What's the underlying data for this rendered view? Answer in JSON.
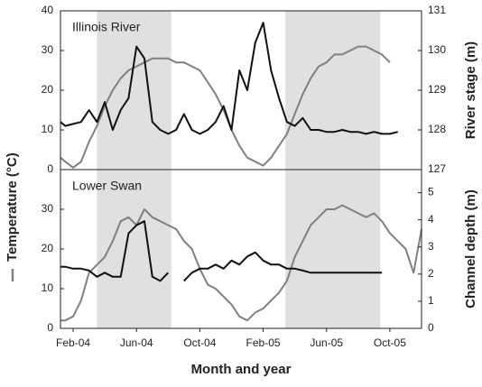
{
  "chart_data": [
    {
      "type": "line",
      "label": "Illinois River",
      "ylabel": "Temperature (°C)",
      "y2label": "River stage (m)",
      "xlim": [
        0.2,
        23.0
      ],
      "ylim": [
        0,
        40
      ],
      "yticks": [
        0,
        10,
        20,
        30,
        40
      ],
      "y2lim": [
        127,
        131
      ],
      "y2ticks": [
        127,
        128,
        129,
        130,
        131
      ],
      "shaded_x": [
        [
          2.5,
          7.2
        ],
        [
          14.4,
          20.4
        ]
      ],
      "shade_color": "#e0e0e0",
      "x": [
        0.2,
        0.5,
        1,
        1.5,
        2,
        2.5,
        3,
        3.5,
        4,
        4.5,
        5,
        5.5,
        6,
        6.5,
        7,
        7.5,
        8,
        8.5,
        9,
        9.5,
        10,
        10.5,
        11,
        11.5,
        12,
        12.5,
        13,
        13.5,
        14,
        14.5,
        15,
        15.5,
        16,
        16.5,
        17,
        17.5,
        18,
        18.5,
        19,
        19.5,
        20,
        20.5,
        21,
        21.5,
        22,
        22.5,
        23
      ],
      "series": [
        {
          "color": "#808080",
          "values": [
            3,
            2,
            0.5,
            2,
            7,
            11,
            16,
            20,
            23,
            25,
            26,
            27,
            28,
            28,
            28,
            27,
            27,
            26,
            25,
            22,
            19,
            15,
            10,
            6,
            3,
            2,
            1,
            3,
            6,
            9,
            14,
            19,
            23,
            26,
            27,
            29,
            29,
            30,
            31,
            31,
            30,
            29,
            27,
            null,
            null,
            null,
            null
          ]
        },
        {
          "color": "#111111",
          "axis": "y2",
          "values": [
            128.2,
            128.1,
            128.15,
            128.2,
            128.5,
            128.2,
            128.7,
            128.0,
            128.5,
            128.8,
            130.1,
            129.8,
            128.2,
            128.0,
            127.9,
            128.0,
            128.4,
            128.0,
            127.9,
            128.0,
            128.2,
            128.6,
            128.0,
            129.5,
            129.0,
            130.2,
            130.7,
            129.5,
            128.8,
            128.2,
            128.1,
            128.3,
            128.0,
            128.0,
            127.95,
            127.95,
            128.0,
            127.95,
            127.95,
            127.9,
            127.95,
            127.9,
            127.9,
            127.95,
            null,
            null,
            null
          ]
        }
      ]
    },
    {
      "type": "line",
      "label": "Lower Swan",
      "y2label": "Channel depth (m)",
      "xlabel": "Month and year",
      "xlim": [
        0.2,
        23.0
      ],
      "ylim": [
        0,
        40
      ],
      "yticks": [
        0,
        10,
        20,
        30
      ],
      "y2lim": [
        0,
        5.85
      ],
      "y2ticks": [
        0,
        1,
        2,
        3,
        4,
        5
      ],
      "xticks": [
        {
          "value": 1,
          "label": "Feb-04"
        },
        {
          "value": 5,
          "label": "Jun-04"
        },
        {
          "value": 9,
          "label": "Oct-04"
        },
        {
          "value": 13,
          "label": "Feb-05"
        },
        {
          "value": 17,
          "label": "Jun-05"
        },
        {
          "value": 21,
          "label": "Oct-05"
        }
      ],
      "shaded_x": [
        [
          2.5,
          7.2
        ],
        [
          14.4,
          20.4
        ]
      ],
      "shade_color": "#e0e0e0",
      "x": [
        0.2,
        0.5,
        1,
        1.5,
        2,
        2.5,
        3,
        3.5,
        4,
        4.5,
        5,
        5.5,
        6,
        6.5,
        7,
        7.5,
        8,
        8.5,
        9,
        9.5,
        10,
        10.5,
        11,
        11.5,
        12,
        12.5,
        13,
        13.5,
        14,
        14.5,
        15,
        15.5,
        16,
        16.5,
        17,
        17.5,
        18,
        18.5,
        19,
        19.5,
        20,
        20.5,
        21,
        21.5,
        22,
        22.5,
        23
      ],
      "series": [
        {
          "color": "#808080",
          "values": [
            2,
            2,
            3,
            7,
            14,
            16,
            18,
            22,
            27,
            28,
            26,
            30,
            28,
            27,
            26,
            25,
            22,
            20,
            15,
            11,
            10,
            8,
            6,
            3,
            2,
            4,
            5,
            7,
            9,
            12,
            18,
            22,
            26,
            28,
            30,
            30,
            31,
            30,
            29,
            28,
            29,
            27,
            24,
            22,
            20,
            14,
            25
          ]
        },
        {
          "color": "#111111",
          "axis": "y2",
          "values": [
            2.27,
            2.27,
            2.2,
            2.2,
            2.13,
            1.9,
            2.05,
            1.9,
            1.9,
            3.5,
            3.8,
            3.95,
            1.9,
            1.75,
            2.05,
            null,
            1.75,
            2.05,
            2.2,
            2.2,
            2.35,
            2.2,
            2.5,
            2.35,
            2.65,
            2.8,
            2.5,
            2.35,
            2.35,
            2.2,
            2.2,
            2.13,
            2.05,
            2.05,
            2.05,
            2.05,
            2.05,
            2.05,
            2.05,
            2.05,
            2.05,
            2.05,
            null,
            null,
            null,
            null,
            null
          ]
        }
      ]
    }
  ]
}
